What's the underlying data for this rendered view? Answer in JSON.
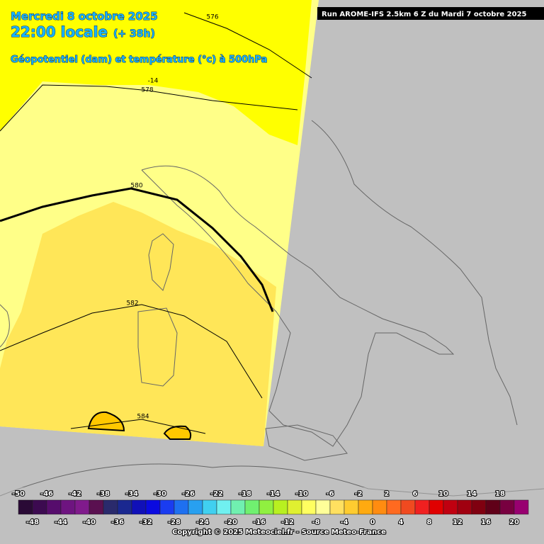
{
  "header": {
    "date": "Mercredi 8 octobre 2025",
    "time": "22:00 locale",
    "lead": "(+ 38h)",
    "parameter": "Géopotentiel (dam) et température (°c) à 500hPa",
    "run": "Run AROME-IFS 2.5km 6 Z du Mardi 7 octobre 2025"
  },
  "contour_labels": {
    "c576": "576",
    "c578": "578",
    "t14": "-14",
    "c580": "580",
    "c582": "582",
    "c584": "584"
  },
  "legend": {
    "labels": [
      -50,
      -48,
      -46,
      -44,
      -42,
      -40,
      -38,
      -36,
      -34,
      -32,
      -30,
      -28,
      -26,
      -24,
      -22,
      -20,
      -18,
      -16,
      -14,
      -12,
      -10,
      -8,
      -6,
      -4,
      -2,
      0,
      2,
      4,
      6,
      8,
      10,
      12,
      14,
      16,
      18,
      20
    ],
    "colors": [
      "#2a0a36",
      "#3c0a50",
      "#560c6c",
      "#6e1480",
      "#801a8c",
      "#5a1050",
      "#2a2a6c",
      "#1a2890",
      "#1010b8",
      "#0a0ae0",
      "#1a3cf0",
      "#1e70f0",
      "#28a0f0",
      "#40d0f0",
      "#70f0f0",
      "#70f0b0",
      "#70f070",
      "#90f040",
      "#b8f020",
      "#e0f030",
      "#ffff60",
      "#ffff99",
      "#ffe060",
      "#ffcc30",
      "#ffaa10",
      "#ff8c10",
      "#ff6a20",
      "#f04a20",
      "#f02020",
      "#e00000",
      "#c00010",
      "#a00010",
      "#800010",
      "#600018",
      "#780040",
      "#980070",
      "#c000b0",
      "#e000e0",
      "#ff40ff",
      "#ff88ff"
    ]
  },
  "footer": "Copyright © 2025 Meteociel.fr - Source Meteo-France"
}
